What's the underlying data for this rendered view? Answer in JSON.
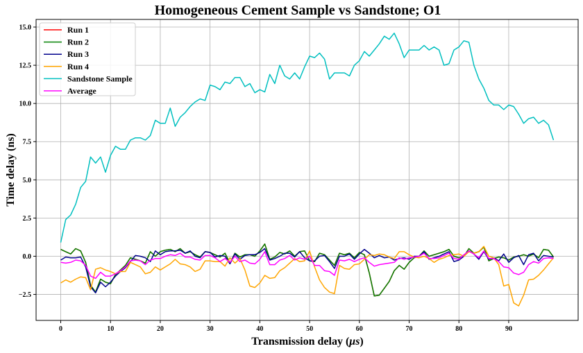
{
  "chart_data": {
    "type": "line",
    "title": "Homogeneous Cement Sample vs Sandstone; O1",
    "xlabel": "Transmission delay (μs)",
    "xlabel_main": "Transmission delay (",
    "xlabel_unit": "μs",
    "xlabel_close": ")",
    "ylabel": "Time delay (ns)",
    "xlim": [
      -4.95,
      103.95
    ],
    "ylim": [
      -4.2,
      15.5
    ],
    "xticks": [
      0,
      10,
      20,
      30,
      40,
      50,
      60,
      70,
      80,
      90
    ],
    "yticks": [
      -2.5,
      0.0,
      2.5,
      5.0,
      7.5,
      10.0,
      12.5,
      15.0
    ],
    "ytick_labels": [
      "−2.5",
      "0.0",
      "2.5",
      "5.0",
      "7.5",
      "10.0",
      "12.5",
      "15.0"
    ],
    "grid": true,
    "legend_position": "top-left",
    "series": [
      {
        "name": "Run 1",
        "color": "#ff0000",
        "y": [
          0.45,
          0.3,
          0.15,
          0.5,
          0.35,
          -0.4,
          -1.9,
          -2.35,
          -1.5,
          -1.7,
          -1.8,
          -1.2,
          -0.9,
          -0.6,
          -0.1,
          -0.2,
          -0.3,
          -0.45,
          0.3,
          0.0,
          0.3,
          0.4,
          0.45,
          0.3,
          0.5,
          0.2,
          0.3,
          0.1,
          -0.05,
          0.3,
          0.25,
          0.1,
          -0.05,
          0.2,
          -0.45,
          0.2,
          -0.05,
          0.1,
          0.1,
          0.0,
          0.35,
          0.8,
          -0.2,
          -0.05,
          0.25,
          0.15,
          0.35,
          0.0,
          0.3,
          0.35,
          -0.3,
          -0.35,
          0.2,
          0.1,
          -0.25,
          -0.6,
          0.2,
          0.1,
          0.2,
          -0.1,
          0.25,
          0.1,
          -1.1,
          -2.6,
          -2.55,
          -2.1,
          -1.65,
          -0.95,
          -0.6,
          -0.85,
          -0.4,
          -0.1,
          0.0,
          0.35,
          0.0,
          0.1,
          0.2,
          0.3,
          0.45,
          0.0,
          -0.1,
          0.0,
          0.5,
          0.2,
          0.3,
          0.6,
          -0.3,
          -0.15,
          -0.05,
          -0.1,
          -0.25,
          -0.05,
          0.0,
          0.1,
          0.0,
          0.15,
          -0.1,
          0.45,
          0.4,
          -0.05
        ]
      },
      {
        "name": "Run 2",
        "color": "#008000",
        "y": [
          0.45,
          0.3,
          0.15,
          0.5,
          0.35,
          -0.4,
          -1.9,
          -2.35,
          -1.5,
          -1.7,
          -1.8,
          -1.2,
          -0.9,
          -0.6,
          -0.1,
          -0.2,
          -0.3,
          -0.45,
          0.3,
          0.0,
          0.3,
          0.4,
          0.45,
          0.3,
          0.5,
          0.2,
          0.3,
          0.1,
          -0.05,
          0.3,
          0.25,
          0.1,
          -0.05,
          0.2,
          -0.45,
          0.2,
          -0.05,
          0.1,
          0.1,
          0.0,
          0.35,
          0.8,
          -0.2,
          -0.05,
          0.25,
          0.15,
          0.35,
          0.0,
          0.3,
          0.35,
          -0.3,
          -0.35,
          0.2,
          0.1,
          -0.25,
          -0.6,
          0.2,
          0.1,
          0.2,
          -0.1,
          0.25,
          0.1,
          -1.1,
          -2.6,
          -2.55,
          -2.1,
          -1.65,
          -0.95,
          -0.6,
          -0.85,
          -0.4,
          -0.1,
          0.0,
          0.35,
          0.0,
          0.1,
          0.2,
          0.3,
          0.45,
          0.0,
          -0.1,
          0.0,
          0.5,
          0.2,
          0.3,
          0.6,
          -0.3,
          -0.15,
          -0.05,
          -0.1,
          -0.25,
          -0.05,
          0.0,
          0.1,
          0.0,
          0.15,
          -0.1,
          0.45,
          0.4,
          -0.05
        ]
      },
      {
        "name": "Run 3",
        "color": "#00008b",
        "y": [
          -0.25,
          -0.05,
          -0.1,
          -0.1,
          -0.05,
          -0.7,
          -2.0,
          -2.4,
          -1.7,
          -2.0,
          -1.7,
          -1.3,
          -1.0,
          -0.75,
          -0.35,
          0.05,
          0.0,
          -0.1,
          -0.35,
          0.35,
          0.1,
          0.3,
          0.35,
          0.35,
          0.4,
          0.2,
          0.35,
          0.0,
          -0.1,
          0.3,
          0.25,
          -0.05,
          0.05,
          0.0,
          -0.5,
          0.15,
          -0.2,
          0.05,
          0.1,
          0.1,
          0.25,
          0.5,
          -0.25,
          -0.15,
          0.0,
          0.2,
          0.2,
          -0.05,
          0.3,
          -0.1,
          -0.3,
          -0.3,
          0.0,
          0.05,
          -0.35,
          -0.8,
          0.0,
          0.0,
          0.15,
          -0.2,
          0.15,
          0.45,
          0.2,
          -0.1,
          0.05,
          -0.1,
          -0.05,
          -0.25,
          -0.15,
          -0.1,
          -0.2,
          0.0,
          0.0,
          0.3,
          -0.2,
          -0.1,
          0.0,
          0.15,
          0.3,
          -0.35,
          -0.25,
          0.0,
          0.35,
          0.15,
          -0.2,
          0.3,
          -0.2,
          -0.1,
          -0.3,
          0.15,
          -0.4,
          -0.1,
          0.05,
          -0.55,
          0.1,
          0.2,
          -0.3,
          0.05,
          0.0,
          -0.05
        ]
      },
      {
        "name": "Run 4",
        "color": "#ffa500",
        "y": [
          -1.75,
          -1.55,
          -1.7,
          -1.5,
          -1.35,
          -1.4,
          -2.2,
          -0.85,
          -0.75,
          -0.9,
          -1.0,
          -1.15,
          -1.0,
          -1.0,
          -0.4,
          -0.55,
          -0.7,
          -1.15,
          -1.05,
          -0.7,
          -0.9,
          -0.7,
          -0.5,
          -0.2,
          -0.5,
          -0.55,
          -0.7,
          -1.0,
          -0.85,
          -0.3,
          -0.3,
          -0.35,
          -0.35,
          -0.65,
          -0.1,
          -0.45,
          -0.15,
          -0.9,
          -1.95,
          -2.05,
          -1.75,
          -1.25,
          -1.45,
          -1.4,
          -0.95,
          -0.75,
          -0.45,
          -0.15,
          -0.35,
          -0.3,
          0.35,
          -0.7,
          -1.55,
          -2.05,
          -2.35,
          -2.45,
          -0.6,
          -0.8,
          -0.85,
          -0.55,
          -0.5,
          -0.2,
          0.1,
          0.05,
          0.15,
          0.1,
          -0.05,
          -0.15,
          0.3,
          0.3,
          0.1,
          -0.05,
          -0.1,
          0.0,
          -0.15,
          -0.4,
          -0.2,
          -0.1,
          0.05,
          0.1,
          0.15,
          0.0,
          0.3,
          0.2,
          0.3,
          0.65,
          0.0,
          -0.1,
          -0.55,
          -1.95,
          -1.85,
          -3.05,
          -3.25,
          -2.55,
          -1.55,
          -1.5,
          -1.25,
          -0.9,
          -0.5,
          -0.1
        ]
      },
      {
        "name": "Sandstone Sample",
        "color": "#00bfbf",
        "y": [
          0.9,
          2.4,
          2.7,
          3.4,
          4.5,
          4.9,
          6.5,
          6.1,
          6.5,
          5.5,
          6.6,
          7.2,
          7.0,
          7.0,
          7.6,
          7.75,
          7.75,
          7.6,
          7.9,
          8.9,
          8.7,
          8.7,
          9.7,
          8.5,
          9.1,
          9.4,
          9.8,
          10.1,
          10.3,
          10.2,
          11.2,
          11.1,
          10.9,
          11.4,
          11.3,
          11.7,
          11.7,
          11.1,
          11.3,
          10.7,
          10.9,
          10.75,
          11.9,
          11.3,
          12.5,
          11.8,
          11.6,
          12.0,
          11.6,
          12.4,
          13.1,
          13.0,
          13.3,
          12.9,
          11.6,
          12.0,
          12.0,
          12.0,
          11.8,
          12.5,
          12.8,
          13.4,
          13.1,
          13.5,
          13.9,
          14.4,
          14.2,
          14.6,
          13.9,
          13.0,
          13.5,
          13.5,
          13.5,
          13.8,
          13.5,
          13.7,
          13.5,
          12.5,
          12.6,
          13.5,
          13.7,
          14.1,
          14.0,
          12.5,
          11.6,
          11.0,
          10.2,
          9.9,
          9.9,
          9.6,
          9.9,
          9.8,
          9.3,
          8.7,
          9.0,
          9.1,
          8.7,
          8.9,
          8.6,
          7.6
        ]
      },
      {
        "name": "Average",
        "color": "#ff00ff",
        "y": [
          -0.4,
          -0.45,
          -0.4,
          -0.25,
          -0.3,
          -0.6,
          -1.3,
          -1.45,
          -1.05,
          -1.3,
          -1.3,
          -1.15,
          -0.95,
          -0.7,
          -0.3,
          -0.25,
          -0.3,
          -0.55,
          -0.25,
          -0.15,
          -0.15,
          0.0,
          0.1,
          0.05,
          0.2,
          -0.05,
          -0.05,
          -0.2,
          -0.25,
          0.05,
          0.05,
          -0.1,
          -0.35,
          -0.15,
          -0.4,
          0.0,
          -0.35,
          -0.25,
          -0.45,
          -0.5,
          -0.2,
          0.3,
          -0.55,
          -0.55,
          -0.25,
          -0.15,
          0.05,
          -0.25,
          -0.1,
          -0.2,
          0.0,
          -0.6,
          -0.6,
          -0.95,
          -1.0,
          -1.25,
          -0.25,
          -0.3,
          -0.2,
          -0.35,
          -0.2,
          -0.1,
          -0.4,
          -0.65,
          -0.55,
          -0.5,
          -0.45,
          -0.4,
          -0.1,
          -0.2,
          -0.1,
          -0.05,
          0.0,
          0.2,
          -0.15,
          -0.15,
          -0.1,
          0.05,
          0.2,
          -0.15,
          -0.2,
          0.1,
          0.35,
          0.15,
          -0.1,
          0.35,
          -0.15,
          -0.15,
          -0.35,
          -0.7,
          -0.75,
          -1.1,
          -1.2,
          -1.05,
          -0.55,
          -0.35,
          -0.45,
          -0.15,
          -0.1,
          -0.15
        ]
      }
    ]
  }
}
